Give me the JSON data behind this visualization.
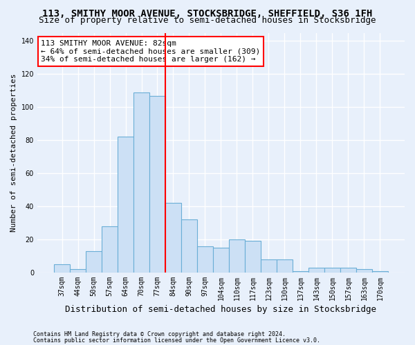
{
  "title": "113, SMITHY MOOR AVENUE, STOCKSBRIDGE, SHEFFIELD, S36 1FH",
  "subtitle": "Size of property relative to semi-detached houses in Stocksbridge",
  "xlabel": "Distribution of semi-detached houses by size in Stocksbridge",
  "ylabel": "Number of semi-detached properties",
  "footnote1": "Contains HM Land Registry data © Crown copyright and database right 2024.",
  "footnote2": "Contains public sector information licensed under the Open Government Licence v3.0.",
  "bar_labels": [
    "37sqm",
    "44sqm",
    "50sqm",
    "57sqm",
    "64sqm",
    "70sqm",
    "77sqm",
    "84sqm",
    "90sqm",
    "97sqm",
    "104sqm",
    "110sqm",
    "117sqm",
    "123sqm",
    "130sqm",
    "137sqm",
    "143sqm",
    "150sqm",
    "157sqm",
    "163sqm",
    "170sqm"
  ],
  "bar_values": [
    5,
    2,
    13,
    28,
    82,
    109,
    107,
    42,
    32,
    16,
    15,
    20,
    19,
    8,
    8,
    1,
    3,
    3,
    3,
    2,
    1
  ],
  "bar_color": "#cce0f5",
  "bar_edge_color": "#6aaed6",
  "vline_index": 7,
  "vline_color": "red",
  "annotation_line1": "113 SMITHY MOOR AVENUE: 82sqm",
  "annotation_line2": "← 64% of semi-detached houses are smaller (309)",
  "annotation_line3": "34% of semi-detached houses are larger (162) →",
  "ylim": [
    0,
    145
  ],
  "yticks": [
    0,
    20,
    40,
    60,
    80,
    100,
    120,
    140
  ],
  "background_color": "#e8f0fb",
  "grid_color": "#ffffff",
  "title_fontsize": 10,
  "subtitle_fontsize": 9,
  "xlabel_fontsize": 9,
  "ylabel_fontsize": 8,
  "tick_fontsize": 7,
  "annot_fontsize": 8
}
